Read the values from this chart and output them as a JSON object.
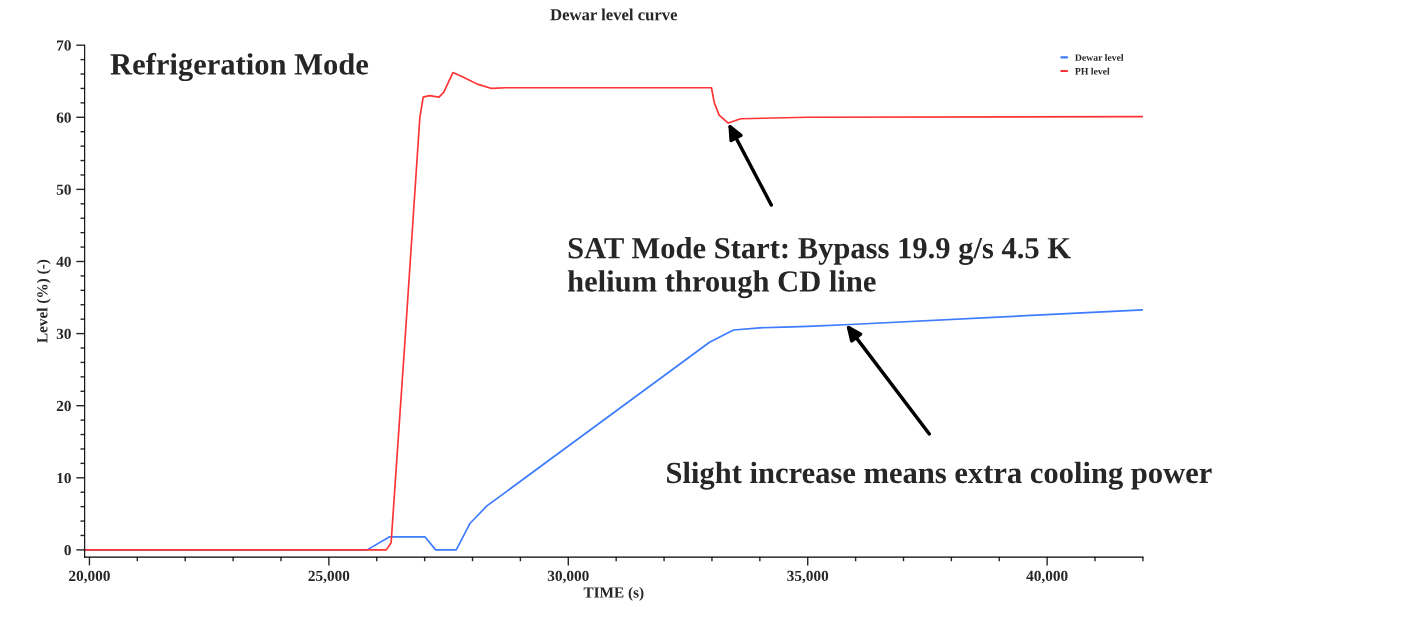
{
  "chart_data": {
    "type": "line",
    "title": "Dewar level curve",
    "xlabel": "TIME (s)",
    "ylabel": "Level (%) (-)",
    "series": [
      {
        "name": "Dewar level",
        "color": "#3d7bff",
        "x": [
          19900,
          25800,
          26260,
          27010,
          27230,
          27660,
          27950,
          28300,
          32950,
          33450,
          34000,
          34500,
          35000,
          36000,
          42000
        ],
        "values": [
          0,
          0,
          1.8,
          1.8,
          0,
          0,
          3.7,
          6.1,
          28.8,
          30.5,
          30.8,
          30.9,
          31.0,
          31.3,
          33.3
        ]
      },
      {
        "name": "PH level",
        "color": "#ff3333",
        "x": [
          19900,
          26200,
          26300,
          26590,
          26900,
          26970,
          27100,
          27300,
          27400,
          27590,
          27800,
          28100,
          28400,
          28700,
          32990,
          33050,
          33150,
          33340,
          33600,
          35000,
          42000
        ],
        "values": [
          0,
          0,
          1,
          29.1,
          60,
          62.8,
          63,
          62.8,
          63.5,
          66.2,
          65.6,
          64.6,
          64,
          64.1,
          64.1,
          62,
          60.3,
          59.2,
          59.8,
          60,
          60.1
        ]
      }
    ],
    "xlim": [
      19900,
      42000
    ],
    "ylim": [
      -1,
      70
    ],
    "xticks": [
      {
        "value": 20000,
        "label": "20,000"
      },
      {
        "value": 25000,
        "label": "25,000"
      },
      {
        "value": 30000,
        "label": "30,000"
      },
      {
        "value": 35000,
        "label": "35,000"
      },
      {
        "value": 40000,
        "label": "40,000"
      }
    ],
    "yticks": [
      0,
      10,
      20,
      30,
      40,
      50,
      60,
      70
    ],
    "grid": false,
    "legend": "top right",
    "marker": "none",
    "line_style": "solid",
    "annotations": [
      "Refrigeration Mode",
      {
        "text": "SAT Mode Start: Bypass 19.9 g/s 4.5 K\nhelium through CD line",
        "x": 33340,
        "y": 59.2
      },
      {
        "text": "Slight increase means extra cooling power",
        "x": 35800,
        "y": 31.3
      }
    ]
  }
}
